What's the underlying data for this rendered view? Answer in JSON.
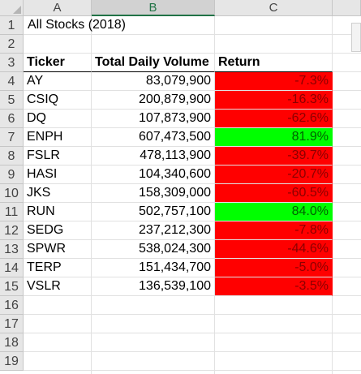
{
  "columns": [
    "A",
    "B",
    "C"
  ],
  "selected_column": "B",
  "row_numbers": [
    "1",
    "2",
    "3",
    "4",
    "5",
    "6",
    "7",
    "8",
    "9",
    "10",
    "11",
    "12",
    "13",
    "14",
    "15",
    "16",
    "17",
    "18",
    "19"
  ],
  "title_cell": "All Stocks (2018)",
  "headers": {
    "ticker": "Ticker",
    "volume": "Total Daily Volume",
    "return": "Return"
  },
  "rows": [
    {
      "ticker": "AY",
      "volume": "83,079,900",
      "return": "-7.3%",
      "status": "negative"
    },
    {
      "ticker": "CSIQ",
      "volume": "200,879,900",
      "return": "-16.3%",
      "status": "negative"
    },
    {
      "ticker": "DQ",
      "volume": "107,873,900",
      "return": "-62.6%",
      "status": "negative"
    },
    {
      "ticker": "ENPH",
      "volume": "607,473,500",
      "return": "81.9%",
      "status": "positive"
    },
    {
      "ticker": "FSLR",
      "volume": "478,113,900",
      "return": "-39.7%",
      "status": "negative"
    },
    {
      "ticker": "HASI",
      "volume": "104,340,600",
      "return": "-20.7%",
      "status": "negative"
    },
    {
      "ticker": "JKS",
      "volume": "158,309,000",
      "return": "-60.5%",
      "status": "negative"
    },
    {
      "ticker": "RUN",
      "volume": "502,757,100",
      "return": "84.0%",
      "status": "positive"
    },
    {
      "ticker": "SEDG",
      "volume": "237,212,300",
      "return": "-7.8%",
      "status": "negative"
    },
    {
      "ticker": "SPWR",
      "volume": "538,024,300",
      "return": "-44.6%",
      "status": "negative"
    },
    {
      "ticker": "TERP",
      "volume": "151,434,700",
      "return": "-5.0%",
      "status": "negative"
    },
    {
      "ticker": "VSLR",
      "volume": "136,539,100",
      "return": "-3.5%",
      "status": "negative"
    }
  ],
  "colors": {
    "negative_fill": "#ff0000",
    "negative_text": "#8b0000",
    "positive_fill": "#00ff00",
    "positive_text": "#006100"
  }
}
